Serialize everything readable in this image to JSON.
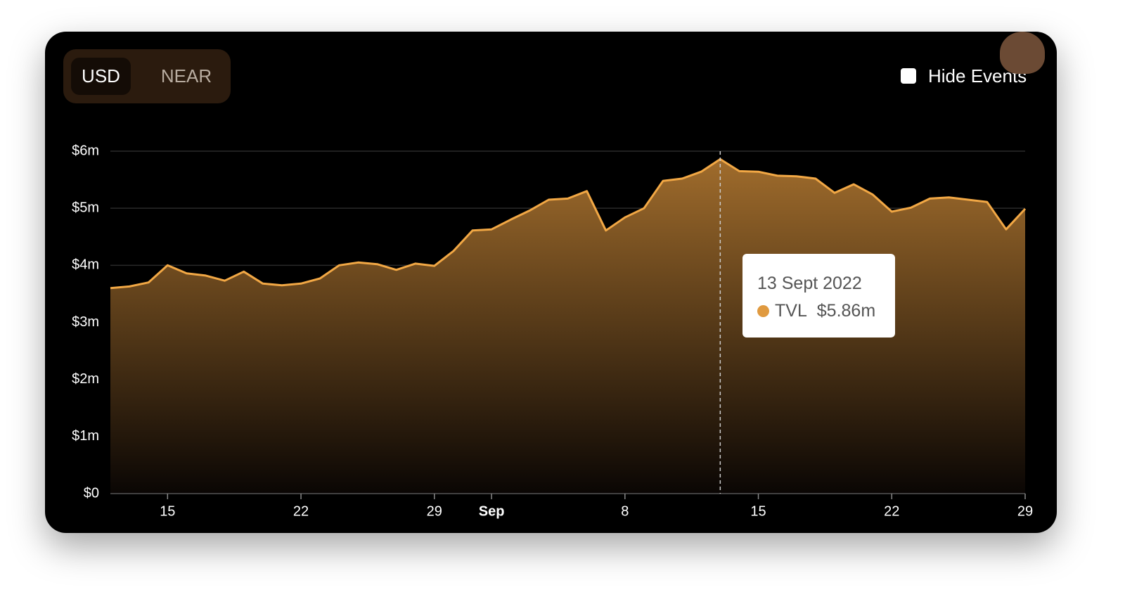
{
  "toggle": {
    "options": [
      "USD",
      "NEAR"
    ]
  },
  "checkbox_label": "Hide Events",
  "chart_data": {
    "type": "area",
    "x": [
      "2022-08-12",
      "2022-08-13",
      "2022-08-14",
      "2022-08-15",
      "2022-08-16",
      "2022-08-17",
      "2022-08-18",
      "2022-08-19",
      "2022-08-20",
      "2022-08-21",
      "2022-08-22",
      "2022-08-23",
      "2022-08-24",
      "2022-08-25",
      "2022-08-26",
      "2022-08-27",
      "2022-08-28",
      "2022-08-29",
      "2022-08-30",
      "2022-08-31",
      "2022-09-01",
      "2022-09-02",
      "2022-09-03",
      "2022-09-04",
      "2022-09-05",
      "2022-09-06",
      "2022-09-07",
      "2022-09-08",
      "2022-09-09",
      "2022-09-10",
      "2022-09-11",
      "2022-09-12",
      "2022-09-13",
      "2022-09-14",
      "2022-09-15",
      "2022-09-16",
      "2022-09-17",
      "2022-09-18",
      "2022-09-19",
      "2022-09-20",
      "2022-09-21",
      "2022-09-22",
      "2022-09-23",
      "2022-09-24",
      "2022-09-25",
      "2022-09-26",
      "2022-09-27",
      "2022-09-28",
      "2022-09-29"
    ],
    "series": [
      {
        "name": "TVL",
        "color": "#f2a845",
        "values": [
          3.6,
          3.63,
          3.7,
          4.0,
          3.86,
          3.82,
          3.73,
          3.89,
          3.68,
          3.65,
          3.68,
          3.77,
          4.0,
          4.05,
          4.02,
          3.92,
          4.03,
          3.99,
          4.25,
          4.61,
          4.63,
          4.8,
          4.96,
          5.15,
          5.17,
          5.3,
          4.61,
          4.84,
          5.0,
          5.48,
          5.52,
          5.64,
          5.86,
          5.65,
          5.64,
          5.57,
          5.56,
          5.52,
          5.27,
          5.42,
          5.24,
          4.94,
          5.01,
          5.17,
          5.19,
          5.15,
          5.11,
          4.63,
          4.99
        ]
      }
    ],
    "xlim": [
      "2022-08-12",
      "2022-09-29"
    ],
    "xticks": [
      {
        "value": "2022-08-15",
        "label": "15"
      },
      {
        "value": "2022-08-22",
        "label": "22"
      },
      {
        "value": "2022-08-29",
        "label": "29"
      },
      {
        "value": "2022-09-01",
        "label": "Sep"
      },
      {
        "value": "2022-09-08",
        "label": "8"
      },
      {
        "value": "2022-09-15",
        "label": "15"
      },
      {
        "value": "2022-09-22",
        "label": "22"
      },
      {
        "value": "2022-09-29",
        "label": "29"
      }
    ],
    "ylim": [
      0,
      6
    ],
    "yticks": [
      {
        "value": 0,
        "label": "$0"
      },
      {
        "value": 1,
        "label": "$1m"
      },
      {
        "value": 2,
        "label": "$2m"
      },
      {
        "value": 3,
        "label": "$3m"
      },
      {
        "value": 4,
        "label": "$4m"
      },
      {
        "value": 5,
        "label": "$5m"
      },
      {
        "value": 6,
        "label": "$6m"
      }
    ],
    "grid": true,
    "tooltip": {
      "x": "2022-09-13",
      "date_label": "13 Sept 2022",
      "value_label": "$5.86m"
    }
  }
}
